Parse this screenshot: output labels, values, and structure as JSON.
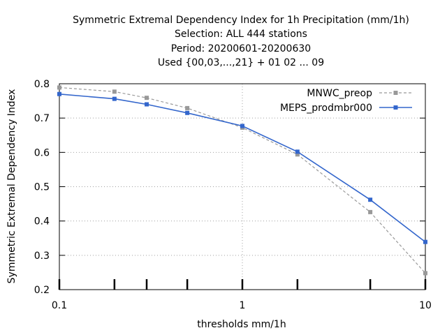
{
  "chart_data": {
    "type": "line",
    "title_lines": [
      "Symmetric Extremal Dependency Index  for 1h Precipitation (mm/1h)",
      "Selection: ALL    444 stations",
      "Period: 20200601-20200630",
      "Used {00,03,...,21} + 01 02 ... 09"
    ],
    "xlabel": "thresholds mm/1h",
    "ylabel": "Symmetric Extremal Dependency Index",
    "xscale": "log",
    "xlim": [
      0.1,
      10
    ],
    "ylim": [
      0.2,
      0.8
    ],
    "x_ticks": [
      {
        "value": 0.1,
        "label": "0.1"
      },
      {
        "value": 1,
        "label": "1"
      },
      {
        "value": 10,
        "label": "10"
      }
    ],
    "y_ticks": [
      {
        "value": 0.2,
        "label": "0.2"
      },
      {
        "value": 0.3,
        "label": "0.3"
      },
      {
        "value": 0.4,
        "label": "0.4"
      },
      {
        "value": 0.5,
        "label": "0.5"
      },
      {
        "value": 0.6,
        "label": "0.6"
      },
      {
        "value": 0.7,
        "label": "0.7"
      },
      {
        "value": 0.8,
        "label": "0.8"
      }
    ],
    "minor_x_ticks": [
      0.1,
      0.2,
      0.3,
      0.5,
      1,
      2,
      5,
      10
    ],
    "grid": true,
    "legend_position": "top-right",
    "x": [
      0.1,
      0.2,
      0.3,
      0.5,
      1,
      2,
      5,
      10
    ],
    "series": [
      {
        "name": "MNWC_preop",
        "color": "#999999",
        "style": "dashed",
        "values": [
          0.789,
          0.777,
          0.759,
          0.729,
          0.672,
          0.594,
          0.426,
          0.248
        ]
      },
      {
        "name": "MEPS_prodmbr000",
        "color": "#3366cc",
        "style": "solid",
        "values": [
          0.77,
          0.756,
          0.74,
          0.715,
          0.677,
          0.602,
          0.462,
          0.339
        ]
      }
    ]
  }
}
